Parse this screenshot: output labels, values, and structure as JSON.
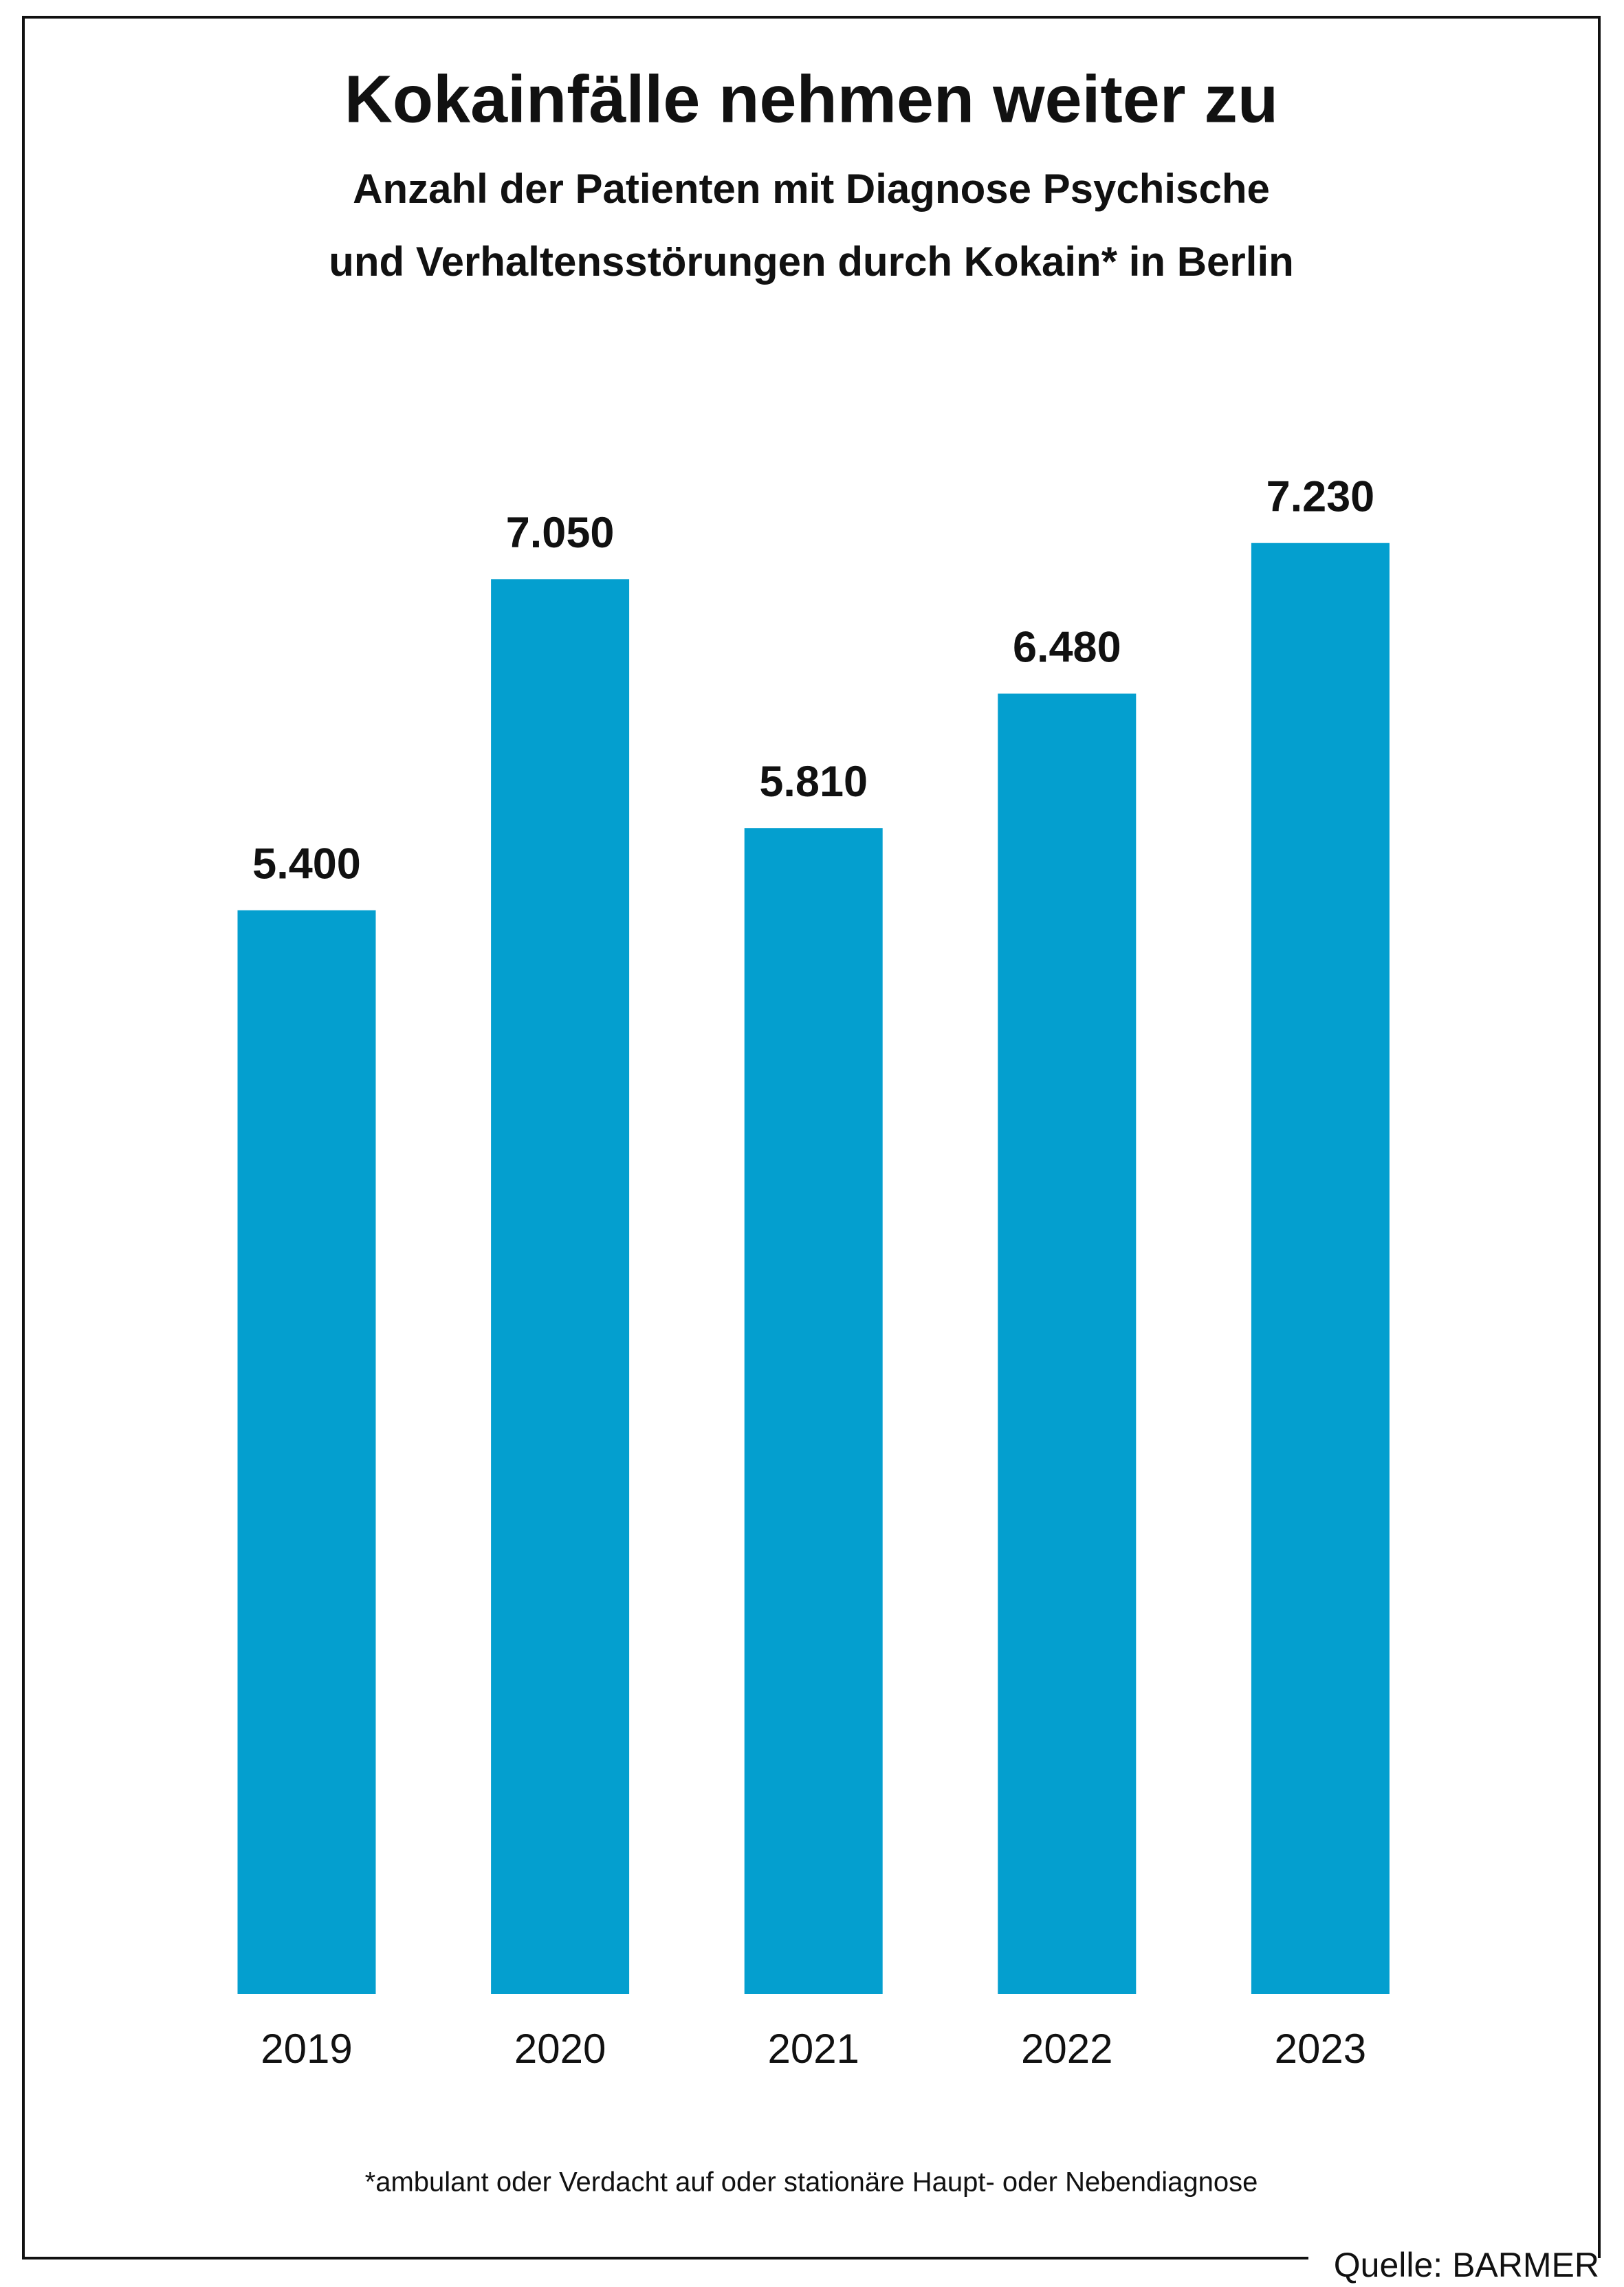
{
  "chart_data": {
    "type": "bar",
    "title": "Kokainfälle nehmen weiter zu",
    "subtitle": [
      "Anzahl der Patienten mit Diagnose Psychische",
      "und Verhaltensstörungen durch Kokain* in Berlin"
    ],
    "categories": [
      "2019",
      "2020",
      "2021",
      "2022",
      "2023"
    ],
    "values": [
      5400,
      7050,
      5810,
      6480,
      7230
    ],
    "value_labels": [
      "5.400",
      "7.050",
      "5.810",
      "6.480",
      "7.230"
    ],
    "color": "#049fcf",
    "ylim": [
      0,
      8000
    ],
    "footnote": "*ambulant oder Verdacht auf oder stationäre Haupt- oder Nebendiagnose",
    "source": "Quelle: BARMER"
  }
}
